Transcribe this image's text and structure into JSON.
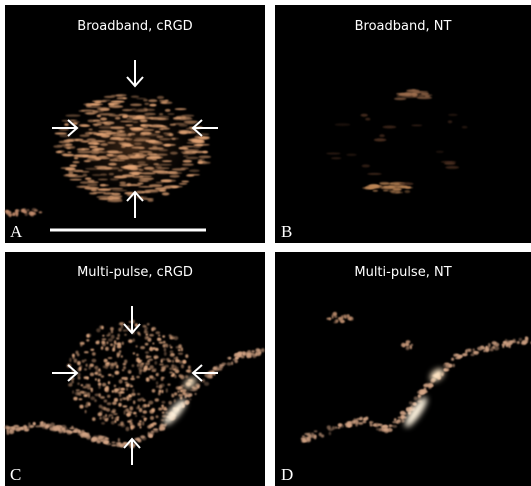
{
  "panels": [
    {
      "title": "Broadband, cRGD",
      "letter": "A"
    },
    {
      "title": "Broadband, NT",
      "letter": "B"
    },
    {
      "title": "Multi-pulse, cRGD",
      "letter": "C"
    },
    {
      "title": "Multi-pulse, NT",
      "letter": "D"
    }
  ]
}
